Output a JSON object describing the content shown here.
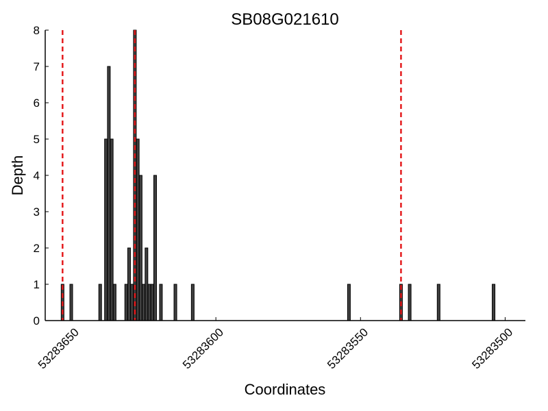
{
  "chart_data": {
    "type": "bar",
    "title": "SB08G021610",
    "xlabel": "Coordinates",
    "ylabel": "Depth",
    "x_reversed": true,
    "xlim": [
      53283659,
      53283493
    ],
    "ylim": [
      0,
      8
    ],
    "yticks": [
      0,
      1,
      2,
      3,
      4,
      5,
      6,
      7,
      8
    ],
    "xticks": [
      53283650,
      53283600,
      53283550,
      53283500
    ],
    "bars": [
      {
        "x": 53283653,
        "y": 1
      },
      {
        "x": 53283650,
        "y": 1
      },
      {
        "x": 53283640,
        "y": 1
      },
      {
        "x": 53283638,
        "y": 5
      },
      {
        "x": 53283637,
        "y": 7
      },
      {
        "x": 53283636,
        "y": 5
      },
      {
        "x": 53283635,
        "y": 1
      },
      {
        "x": 53283631,
        "y": 1
      },
      {
        "x": 53283630,
        "y": 2
      },
      {
        "x": 53283629,
        "y": 1
      },
      {
        "x": 53283628,
        "y": 8
      },
      {
        "x": 53283627,
        "y": 5
      },
      {
        "x": 53283626,
        "y": 4
      },
      {
        "x": 53283625,
        "y": 1
      },
      {
        "x": 53283624,
        "y": 2
      },
      {
        "x": 53283623,
        "y": 1
      },
      {
        "x": 53283622,
        "y": 1
      },
      {
        "x": 53283621,
        "y": 4
      },
      {
        "x": 53283619,
        "y": 1
      },
      {
        "x": 53283614,
        "y": 1
      },
      {
        "x": 53283608,
        "y": 1
      },
      {
        "x": 53283554,
        "y": 1
      },
      {
        "x": 53283536,
        "y": 1
      },
      {
        "x": 53283533,
        "y": 1
      },
      {
        "x": 53283523,
        "y": 1
      },
      {
        "x": 53283504,
        "y": 1
      }
    ],
    "boundaries": [
      53283653,
      53283628,
      53283536
    ],
    "boundary_color": "#e41a1c",
    "bar_color": "#404040",
    "grid": false
  }
}
